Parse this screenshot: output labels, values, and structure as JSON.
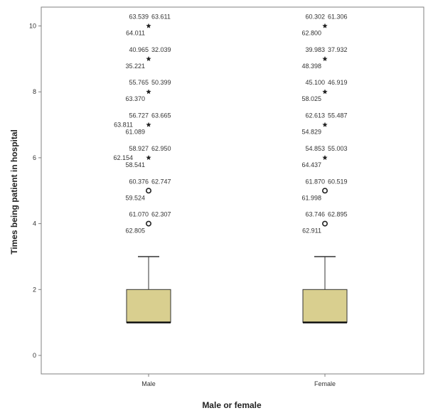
{
  "chart_data": {
    "type": "boxplot",
    "xlabel": "Male or female",
    "ylabel": "Times being patient in hospital",
    "categories": [
      "Male",
      "Female"
    ],
    "ylim": [
      -0.5,
      10.5
    ],
    "yticks": [
      0,
      2,
      4,
      6,
      8,
      10
    ],
    "grid": false,
    "boxes": [
      {
        "category": "Male",
        "whisker_low": 1,
        "q1": 1,
        "median": 1,
        "q3": 2,
        "whisker_high": 3
      },
      {
        "category": "Female",
        "whisker_low": 1,
        "q1": 1,
        "median": 1,
        "q3": 2,
        "whisker_high": 3
      }
    ],
    "outliers": [
      {
        "category": "Male",
        "value": 4,
        "marker": "circle",
        "labels": [
          "61.070",
          "62.307",
          "62.805"
        ]
      },
      {
        "category": "Male",
        "value": 5,
        "marker": "circle",
        "labels": [
          "60.376",
          "62.747",
          "59.524"
        ]
      },
      {
        "category": "Male",
        "value": 6,
        "marker": "star",
        "labels": [
          "58.927",
          "62.950",
          "62.154",
          "58.541"
        ]
      },
      {
        "category": "Male",
        "value": 7,
        "marker": "star",
        "labels": [
          "56.727",
          "63.665",
          "63.811",
          "61.089"
        ]
      },
      {
        "category": "Male",
        "value": 8,
        "marker": "star",
        "labels": [
          "55.765",
          "50.399",
          "63.370"
        ]
      },
      {
        "category": "Male",
        "value": 9,
        "marker": "star",
        "labels": [
          "40.965",
          "32.039",
          "35.221"
        ]
      },
      {
        "category": "Male",
        "value": 10,
        "marker": "star",
        "labels": [
          "63.539",
          "63.611",
          "64.011"
        ]
      },
      {
        "category": "Female",
        "value": 4,
        "marker": "circle",
        "labels": [
          "63.746",
          "62.895",
          "62.911"
        ]
      },
      {
        "category": "Female",
        "value": 5,
        "marker": "circle",
        "labels": [
          "61.870",
          "60.519",
          "61.998"
        ]
      },
      {
        "category": "Female",
        "value": 6,
        "marker": "star",
        "labels": [
          "54.853",
          "55.003",
          "64.437"
        ]
      },
      {
        "category": "Female",
        "value": 7,
        "marker": "star",
        "labels": [
          "62.613",
          "55.487",
          "54.829"
        ]
      },
      {
        "category": "Female",
        "value": 8,
        "marker": "star",
        "labels": [
          "45.100",
          "46.919",
          "58.025"
        ]
      },
      {
        "category": "Female",
        "value": 9,
        "marker": "star",
        "labels": [
          "39.983",
          "37.932",
          "48.398"
        ]
      },
      {
        "category": "Female",
        "value": 10,
        "marker": "star",
        "labels": [
          "60.302",
          "61.306",
          "62.800"
        ]
      }
    ],
    "colors": {
      "box_fill": "#d9cf8f",
      "frame": "#808080",
      "marker": "#222222"
    }
  }
}
